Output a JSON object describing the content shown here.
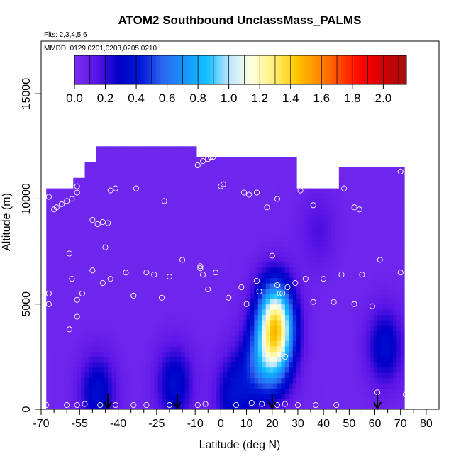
{
  "chart_data": {
    "type": "heatmap",
    "title": "ATOM2 Southbound UnclassMass_PALMS",
    "subtitle_flights": "Flts: 2,3,4,5,6",
    "subtitle_dates": "MMDD: 0129,0201,0203,0205,0210",
    "xlabel": "Latitude (deg N)",
    "ylabel": "Altitude (m)",
    "xlim": [
      -70,
      85
    ],
    "ylim": [
      0,
      17500
    ],
    "x_major_ticks": [
      -70,
      -55,
      -40,
      -25,
      -10,
      0,
      10,
      20,
      30,
      40,
      50,
      60,
      70,
      80
    ],
    "x_minor_ticks": [
      -65,
      -60,
      -50,
      -45,
      -35,
      -30,
      -20,
      -15,
      -5,
      5,
      15,
      25,
      35,
      45,
      55,
      65,
      75
    ],
    "y_ticks": [
      0,
      5000,
      10000,
      15000
    ],
    "colorbar": {
      "min": 0.0,
      "max": 2.15,
      "tick_values": [
        0.0,
        0.2,
        0.4,
        0.6,
        0.8,
        1.0,
        1.2,
        1.4,
        1.6,
        1.8,
        2.0
      ],
      "tick_labels": [
        "0.0",
        "0.2",
        "0.4",
        "0.6",
        "0.8",
        "1.0",
        "1.2",
        "1.4",
        "1.6",
        "1.8",
        "2.0"
      ],
      "colors": [
        "#7b2ff0",
        "#5a14e6",
        "#0000c8",
        "#0018d8",
        "#2e66f0",
        "#1496ff",
        "#14c0ff",
        "#bfe6ff",
        "#ffffe0",
        "#fff078",
        "#ffc800",
        "#ff8c00",
        "#ff4600",
        "#ff0000",
        "#d00000",
        "#a01010"
      ]
    },
    "background_value": 0.05,
    "field_extent": {
      "lat": [
        -68,
        72
      ],
      "upper_boundary": [
        [
          -68,
          10500
        ],
        [
          -58,
          11000
        ],
        [
          -53,
          11700
        ],
        [
          -48,
          12500
        ],
        [
          -10,
          12500
        ],
        [
          -10,
          11900
        ],
        [
          30,
          11900
        ],
        [
          30,
          10500
        ],
        [
          46,
          10500
        ],
        [
          46,
          11300
        ],
        [
          72,
          11300
        ]
      ]
    },
    "enhancements": [
      {
        "lat": 21,
        "alt": 4500,
        "value": 0.85
      },
      {
        "lat": 22,
        "alt": 3300,
        "value": 0.55
      },
      {
        "lat": 20,
        "alt": 2200,
        "value": 0.35
      },
      {
        "lat": 14,
        "alt": 2200,
        "value": 0.3
      },
      {
        "lat": 5,
        "alt": 700,
        "value": 0.3
      },
      {
        "lat": -18,
        "alt": 1200,
        "value": 0.3
      },
      {
        "lat": -48,
        "alt": 800,
        "value": 0.3
      },
      {
        "lat": 64,
        "alt": 3000,
        "value": 0.3
      },
      {
        "lat": 38,
        "alt": 8500,
        "value": 0.12
      }
    ],
    "samples": [
      [
        -67,
        10100
      ],
      [
        -65,
        9500
      ],
      [
        -64,
        9600
      ],
      [
        -62,
        9750
      ],
      [
        -60,
        9900
      ],
      [
        -58,
        10000
      ],
      [
        -56,
        10600
      ],
      [
        -56,
        10300
      ],
      [
        -55,
        11600
      ],
      [
        -53,
        12000
      ],
      [
        -51,
        12200
      ],
      [
        -50,
        9000
      ],
      [
        -48,
        8800
      ],
      [
        -46,
        8900
      ],
      [
        -44,
        8850
      ],
      [
        -45,
        7700
      ],
      [
        -43,
        10400
      ],
      [
        -41,
        10500
      ],
      [
        -33,
        10500
      ],
      [
        -22,
        9900
      ],
      [
        -9,
        11600
      ],
      [
        -7,
        11800
      ],
      [
        -5,
        11900
      ],
      [
        -4,
        12000
      ],
      [
        -4,
        12000
      ],
      [
        -3,
        12000
      ],
      [
        0,
        10600
      ],
      [
        1,
        10700
      ],
      [
        9,
        10300
      ],
      [
        11,
        10200
      ],
      [
        14,
        10300
      ],
      [
        18,
        9600
      ],
      [
        22,
        10000
      ],
      [
        31,
        10400
      ],
      [
        36,
        9700
      ],
      [
        48,
        10500
      ],
      [
        52,
        9600
      ],
      [
        54,
        9500
      ],
      [
        70,
        11300
      ],
      [
        73,
        11300
      ],
      [
        -67,
        5500
      ],
      [
        -67,
        5000
      ],
      [
        -59,
        7400
      ],
      [
        -58,
        6200
      ],
      [
        -56,
        5200
      ],
      [
        -54,
        5500
      ],
      [
        -50,
        6600
      ],
      [
        -46,
        6000
      ],
      [
        -43,
        6200
      ],
      [
        -37,
        6500
      ],
      [
        -34,
        5400
      ],
      [
        -29,
        6500
      ],
      [
        -26,
        6400
      ],
      [
        -23,
        5300
      ],
      [
        -20,
        6300
      ],
      [
        -15,
        7100
      ],
      [
        -8,
        6800
      ],
      [
        -8,
        6700
      ],
      [
        -7,
        6400
      ],
      [
        -5,
        5700
      ],
      [
        -2,
        6500
      ],
      [
        3,
        5300
      ],
      [
        8,
        5800
      ],
      [
        10,
        5000
      ],
      [
        14,
        6100
      ],
      [
        15,
        5600
      ],
      [
        20,
        7300
      ],
      [
        22,
        5900
      ],
      [
        23,
        5500
      ],
      [
        24,
        5500
      ],
      [
        26,
        5800
      ],
      [
        29,
        6000
      ],
      [
        33,
        6200
      ],
      [
        36,
        5100
      ],
      [
        40,
        6200
      ],
      [
        44,
        5100
      ],
      [
        47,
        6400
      ],
      [
        52,
        5000
      ],
      [
        55,
        6400
      ],
      [
        59,
        4900
      ],
      [
        62,
        7100
      ],
      [
        70,
        6500
      ],
      [
        -59,
        3800
      ],
      [
        -56,
        4400
      ],
      [
        25,
        2500
      ],
      [
        61,
        800
      ],
      [
        72,
        700
      ],
      [
        -68,
        200
      ],
      [
        -60,
        200
      ],
      [
        -56,
        200
      ],
      [
        -53,
        250
      ],
      [
        -47,
        200
      ],
      [
        -41,
        200
      ],
      [
        -34,
        200
      ],
      [
        -29,
        200
      ],
      [
        -20,
        200
      ],
      [
        -9,
        200
      ],
      [
        -6,
        250
      ],
      [
        6,
        200
      ],
      [
        12,
        300
      ],
      [
        16,
        250
      ],
      [
        22,
        200
      ],
      [
        25,
        250
      ],
      [
        30,
        200
      ],
      [
        37,
        200
      ],
      [
        45,
        200
      ]
    ],
    "arrows_lat": [
      -44,
      -17,
      20,
      61
    ]
  }
}
